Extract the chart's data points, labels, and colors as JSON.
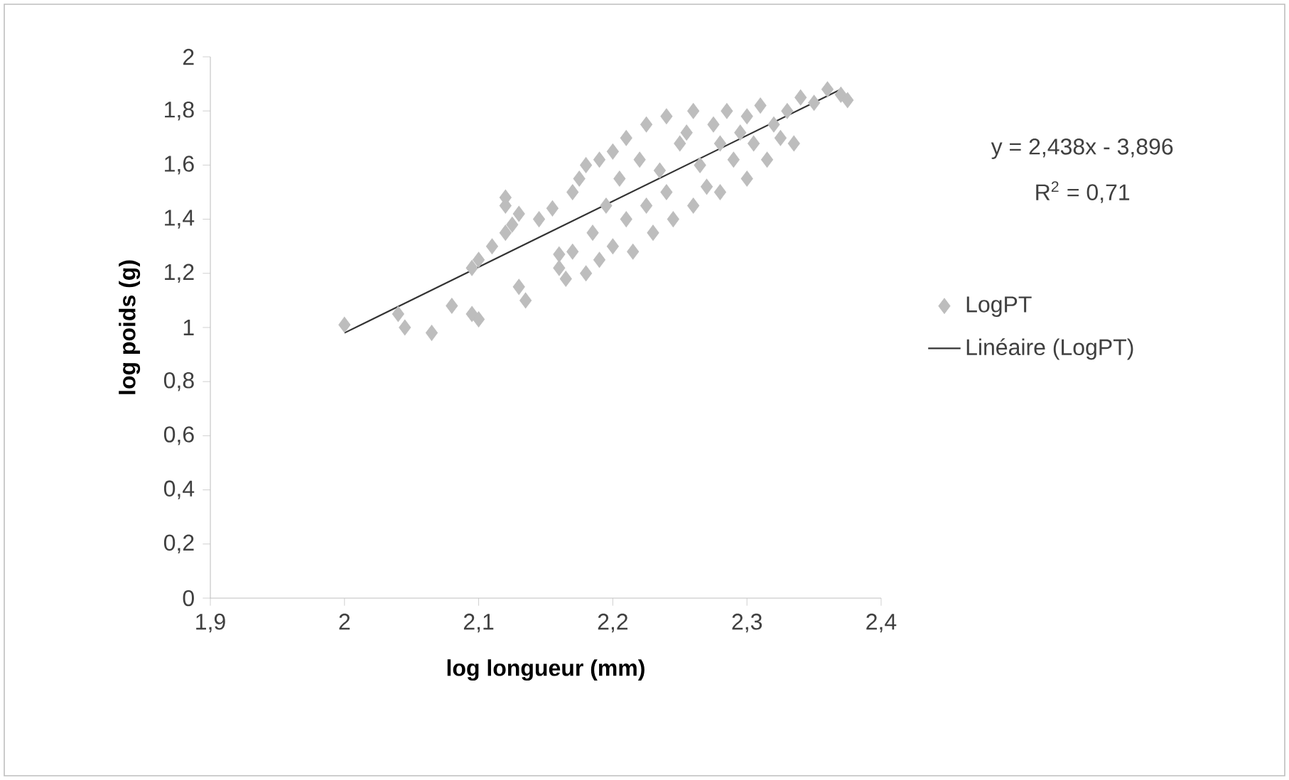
{
  "chart_data": {
    "type": "scatter",
    "xlabel": "log longueur (mm)",
    "ylabel": "log poids (g)",
    "annotations": [
      "y = 2,438x - 3,896",
      "R$^{2}$ = 0,71"
    ],
    "xlim": [
      1.9,
      2.4
    ],
    "ylim": [
      0,
      2
    ],
    "xticks": [
      {
        "value": 1.9,
        "label": "1,9"
      },
      2,
      {
        "value": 2.1,
        "label": "2,1"
      },
      {
        "value": 2.2,
        "label": "2,2"
      },
      {
        "value": 2.3,
        "label": "2,3"
      },
      {
        "value": 2.4,
        "label": "2,4"
      }
    ],
    "yticks": [
      0,
      {
        "value": 0.2,
        "label": "0,2"
      },
      {
        "value": 0.4,
        "label": "0,4"
      },
      {
        "value": 0.6,
        "label": "0,6"
      },
      {
        "value": 0.8,
        "label": "0,8"
      },
      1,
      {
        "value": 1.2,
        "label": "1,2"
      },
      {
        "value": 1.4,
        "label": "1,4"
      },
      {
        "value": 1.6,
        "label": "1,6"
      },
      {
        "value": 1.8,
        "label": "1,8"
      },
      2
    ],
    "legend": "right",
    "series": [
      {
        "name": "LogPT",
        "marker": "diamond",
        "color": "#bdbdbd",
        "x": [
          2.0,
          2.04,
          2.045,
          2.065,
          2.08,
          2.095,
          2.1,
          2.095,
          2.1,
          2.11,
          2.12,
          2.12,
          2.12,
          2.125,
          2.13,
          2.135,
          2.13,
          2.145,
          2.155,
          2.16,
          2.16,
          2.165,
          2.17,
          2.17,
          2.175,
          2.18,
          2.18,
          2.185,
          2.19,
          2.19,
          2.195,
          2.2,
          2.2,
          2.205,
          2.21,
          2.21,
          2.215,
          2.22,
          2.225,
          2.225,
          2.23,
          2.235,
          2.24,
          2.24,
          2.245,
          2.25,
          2.255,
          2.26,
          2.26,
          2.265,
          2.27,
          2.275,
          2.28,
          2.28,
          2.285,
          2.29,
          2.295,
          2.3,
          2.3,
          2.305,
          2.31,
          2.315,
          2.32,
          2.325,
          2.33,
          2.335,
          2.34,
          2.35,
          2.36,
          2.37,
          2.375
        ],
        "values": [
          1.01,
          1.05,
          1.0,
          0.98,
          1.08,
          1.05,
          1.03,
          1.22,
          1.25,
          1.3,
          1.35,
          1.45,
          1.48,
          1.38,
          1.15,
          1.1,
          1.42,
          1.4,
          1.44,
          1.27,
          1.22,
          1.18,
          1.28,
          1.5,
          1.55,
          1.6,
          1.2,
          1.35,
          1.62,
          1.25,
          1.45,
          1.65,
          1.3,
          1.55,
          1.7,
          1.4,
          1.28,
          1.62,
          1.75,
          1.45,
          1.35,
          1.58,
          1.78,
          1.5,
          1.4,
          1.68,
          1.72,
          1.45,
          1.8,
          1.6,
          1.52,
          1.75,
          1.68,
          1.5,
          1.8,
          1.62,
          1.72,
          1.78,
          1.55,
          1.68,
          1.82,
          1.62,
          1.75,
          1.7,
          1.8,
          1.68,
          1.85,
          1.83,
          1.88,
          1.86,
          1.84
        ]
      },
      {
        "name": "Linéaire (LogPT)",
        "type": "line",
        "marker": "none",
        "color": "#333333",
        "x": [
          2.0,
          2.37
        ],
        "values": [
          0.98,
          1.88
        ]
      }
    ]
  }
}
